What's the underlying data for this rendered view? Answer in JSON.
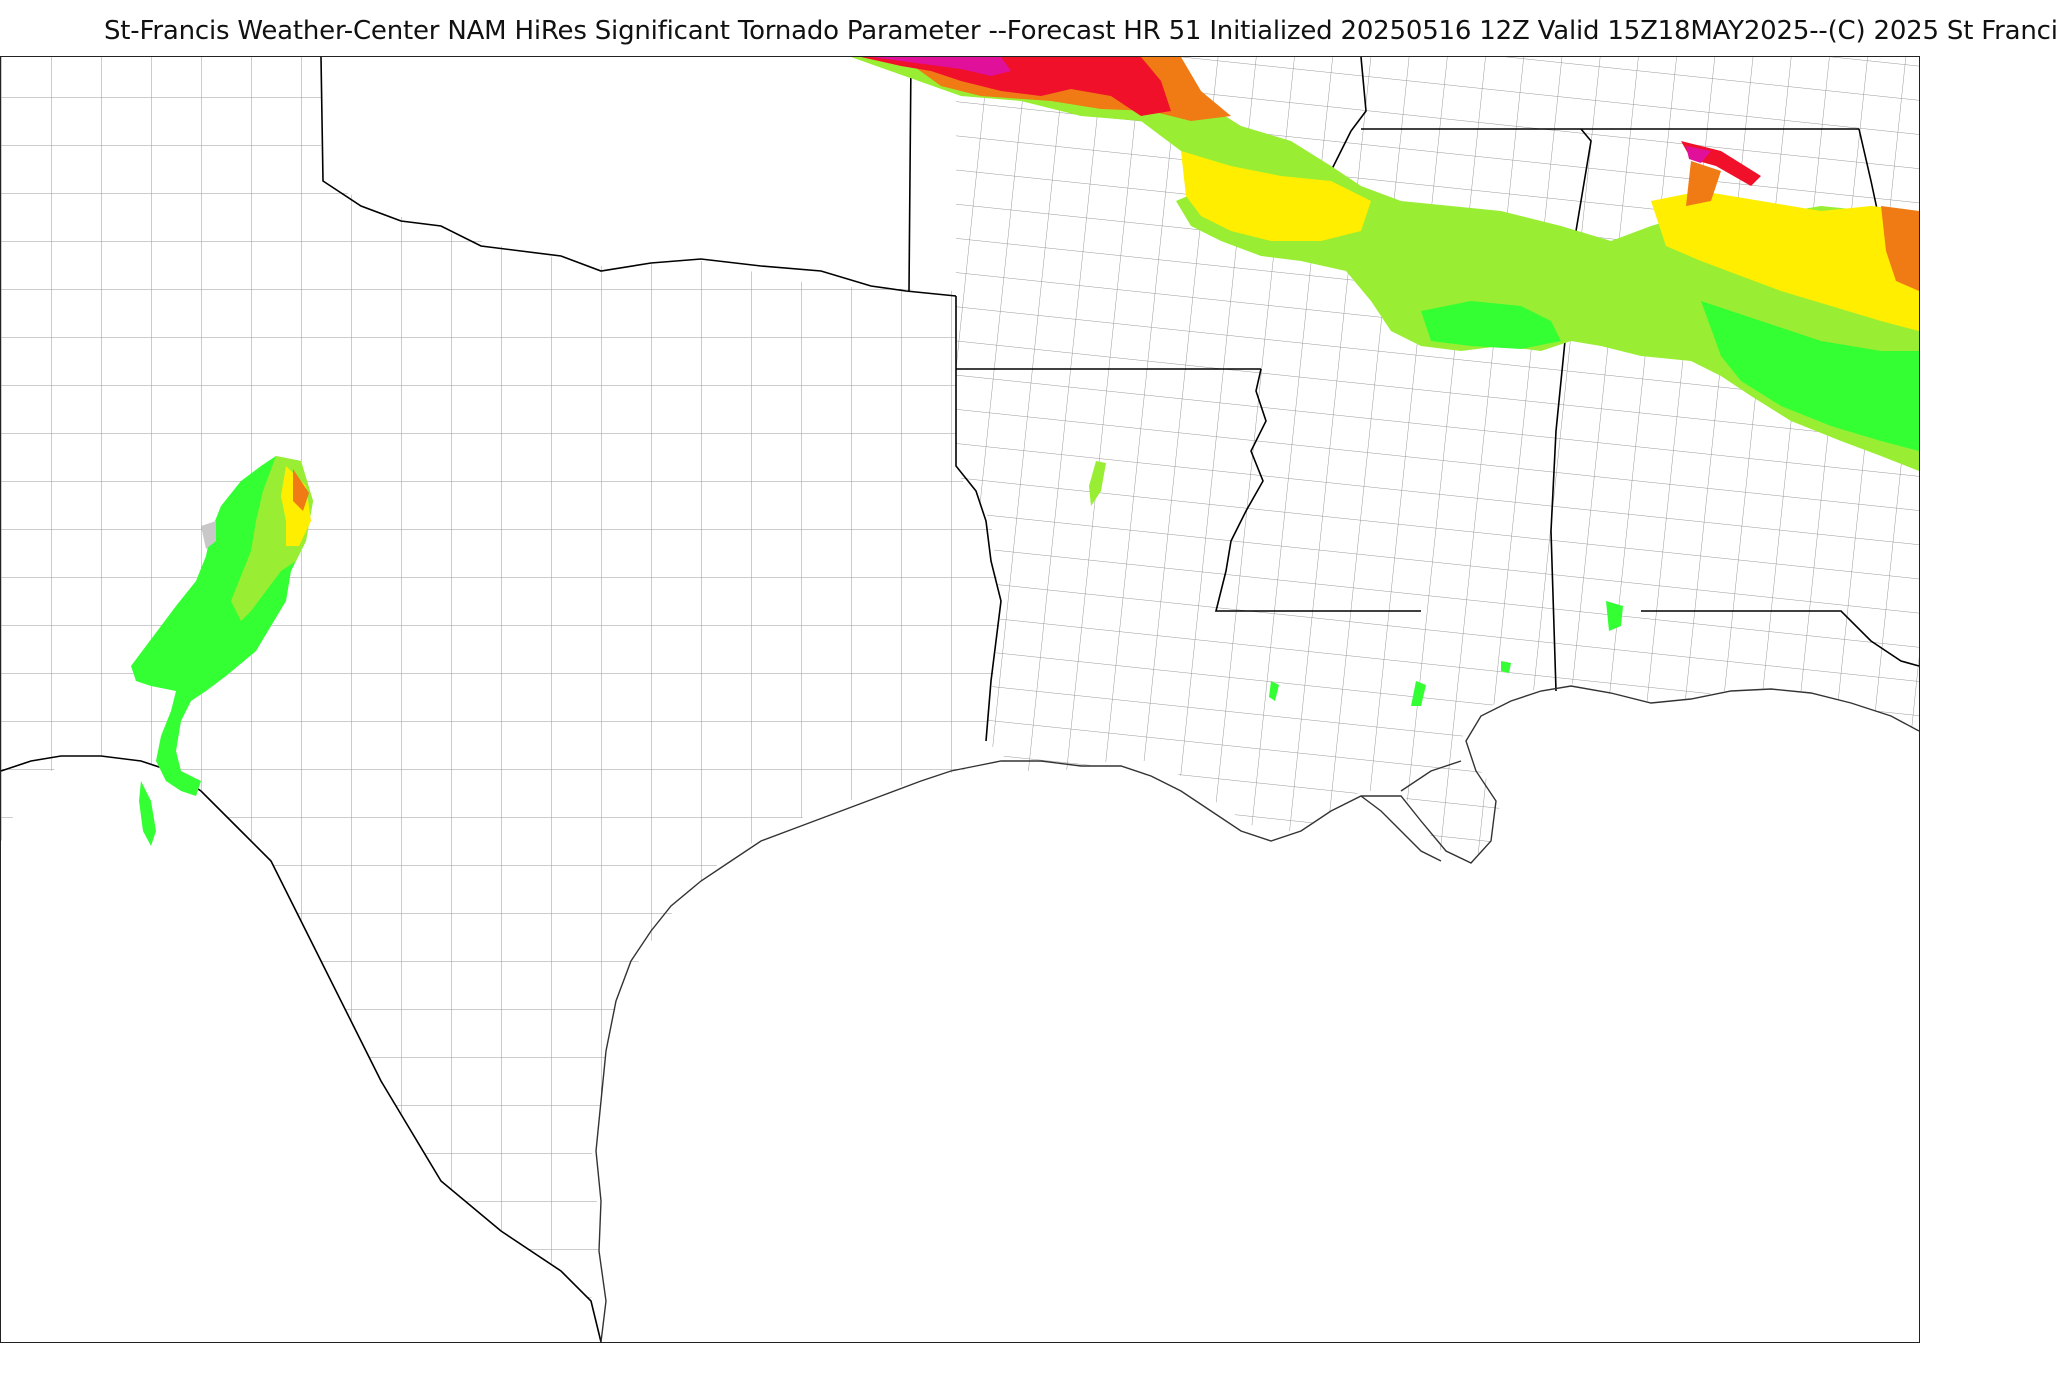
{
  "title": "St-Francis Weather-Center NAM HiRes Significant Tornado Parameter --Forecast HR 51 Initialized 20250516 12Z Valid 15Z18MAY2025--(C) 2025 St Franci",
  "map": {
    "product": "Significant Tornado Parameter",
    "model": "NAM HiRes",
    "colors": {
      "green_bright": "#33ff33",
      "green_light": "#99ee33",
      "yellow": "#ffee00",
      "orange": "#f07a14",
      "red": "#f0102a",
      "magenta": "#e0109a",
      "gray": "#c8c8c8",
      "border": "#000000",
      "county": "#8a8a8a"
    }
  }
}
